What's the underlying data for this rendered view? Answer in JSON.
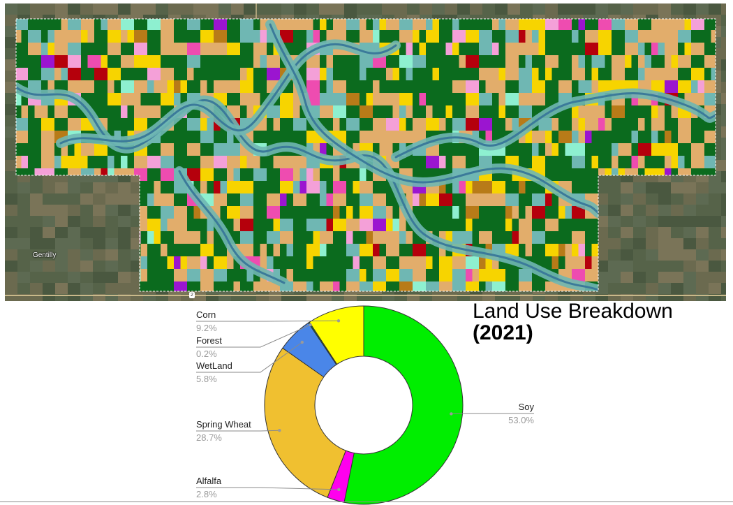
{
  "map": {
    "place_label": "Gentilly",
    "route_shield": "2",
    "colors": {
      "soy": "#0b6b1e",
      "spring_wheat": "#e2ad6b",
      "corn": "#f7d400",
      "wetland": "#6fb7b3",
      "alfalfa": "#ee4cb0",
      "other_red": "#b5000c",
      "pink": "#f4a0d8",
      "mint": "#8ef0d0",
      "purple": "#9b15d0",
      "brown": "#b87b18",
      "river": "#3b7a9a",
      "outside_dark": "#4d5a44"
    }
  },
  "chart_data": {
    "type": "pie",
    "title": "Land Use Breakdown",
    "subtitle": "(2021)",
    "donut": true,
    "slices": [
      {
        "label": "Soy",
        "percent_label": "53.0%",
        "value": 53.0,
        "color": "#00ee00"
      },
      {
        "label": "Alfalfa",
        "percent_label": "2.8%",
        "value": 2.8,
        "color": "#ff00ee"
      },
      {
        "label": "Spring Wheat",
        "percent_label": "28.7%",
        "value": 28.7,
        "color": "#f0c030"
      },
      {
        "label": "WetLand",
        "percent_label": "5.8%",
        "value": 5.8,
        "color": "#4a86e8"
      },
      {
        "label": "Forest",
        "percent_label": "0.2%",
        "value": 0.2,
        "color": "#0f8a3a"
      },
      {
        "label": "Corn",
        "percent_label": "9.2%",
        "value": 9.2,
        "color": "#ffff00"
      }
    ]
  }
}
